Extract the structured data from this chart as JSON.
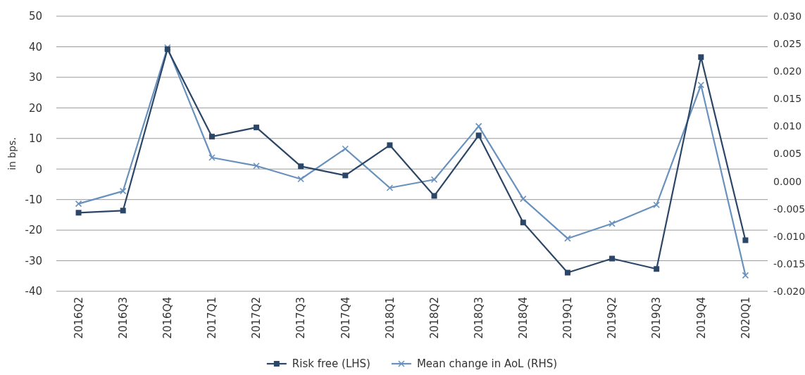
{
  "chart_data": {
    "type": "line",
    "ylabel": "in bps.",
    "categories": [
      "2016Q2",
      "2016Q3",
      "2016Q4",
      "2017Q1",
      "2017Q2",
      "2017Q3",
      "2017Q4",
      "2018Q1",
      "2018Q2",
      "2018Q3",
      "2018Q4",
      "2019Q1",
      "2019Q2",
      "2019Q3",
      "2019Q4",
      "2020Q1"
    ],
    "series": [
      {
        "name": "Risk free (LHS)",
        "color": "#2b4667",
        "marker": "square",
        "values": [
          -14.3,
          -13.6,
          39.2,
          10.6,
          13.6,
          0.9,
          -2.1,
          7.8,
          -8.8,
          11,
          -17.5,
          -33.9,
          -29.3,
          -32.7,
          36.6,
          -23.3
        ]
      },
      {
        "name": "Mean change in AoL (RHS)",
        "color": "#6891bd",
        "marker": "cross",
        "axis": "y2",
        "values": [
          -0.0041,
          -0.0018,
          0.0243,
          0.0043,
          0.0028,
          0.0004,
          0.0059,
          -0.0012,
          0.0003,
          0.01,
          -0.0032,
          -0.0104,
          -0.0077,
          -0.0043,
          0.0175,
          -0.0171
        ]
      }
    ],
    "ylim": [
      -40,
      50
    ],
    "yticks": [
      -40,
      -30,
      -20,
      -10,
      0,
      10,
      20,
      30,
      40,
      50
    ],
    "y2lim": [
      -0.02,
      0.03
    ],
    "y2ticks": [
      {
        "value": -0.02,
        "label": "-0.020"
      },
      {
        "value": -0.015,
        "label": "-0.015"
      },
      {
        "value": -0.01,
        "label": "-0.010"
      },
      {
        "value": -0.005,
        "label": "-0.005"
      },
      {
        "value": 0,
        "label": "0.000"
      },
      {
        "value": 0.005,
        "label": "0.005"
      },
      {
        "value": 0.01,
        "label": "0.010"
      },
      {
        "value": 0.015,
        "label": "0.015"
      },
      {
        "value": 0.02,
        "label": "0.020"
      },
      {
        "value": 0.025,
        "label": "0.025"
      },
      {
        "value": 0.03,
        "label": "0.030"
      }
    ],
    "grid": "y",
    "legend": "bottom",
    "line_style": "solid"
  }
}
